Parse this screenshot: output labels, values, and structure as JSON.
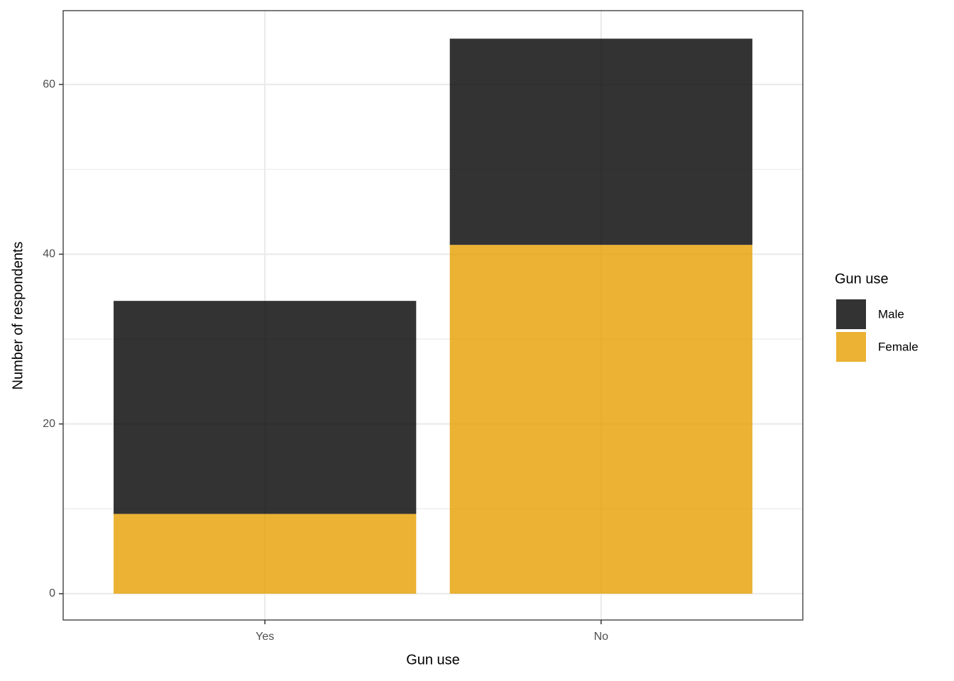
{
  "chart_data": {
    "type": "stacked_bar",
    "categories": [
      "Yes",
      "No"
    ],
    "series": [
      {
        "name": "Male",
        "color": "#000000",
        "values": [
          25.1,
          24.3
        ]
      },
      {
        "name": "Female",
        "color": "#E69F00",
        "values": [
          9.4,
          41.1
        ]
      }
    ],
    "alpha": 0.8,
    "x_label": "Gun use",
    "y_label": "Number of respondents",
    "legend_title": "Gun use",
    "legend": "right",
    "ylim": [
      -3.1,
      68.7
    ],
    "yticks": [
      0,
      20,
      40,
      60
    ],
    "minor_yticks": [
      10,
      30,
      50
    ],
    "grid": true
  }
}
